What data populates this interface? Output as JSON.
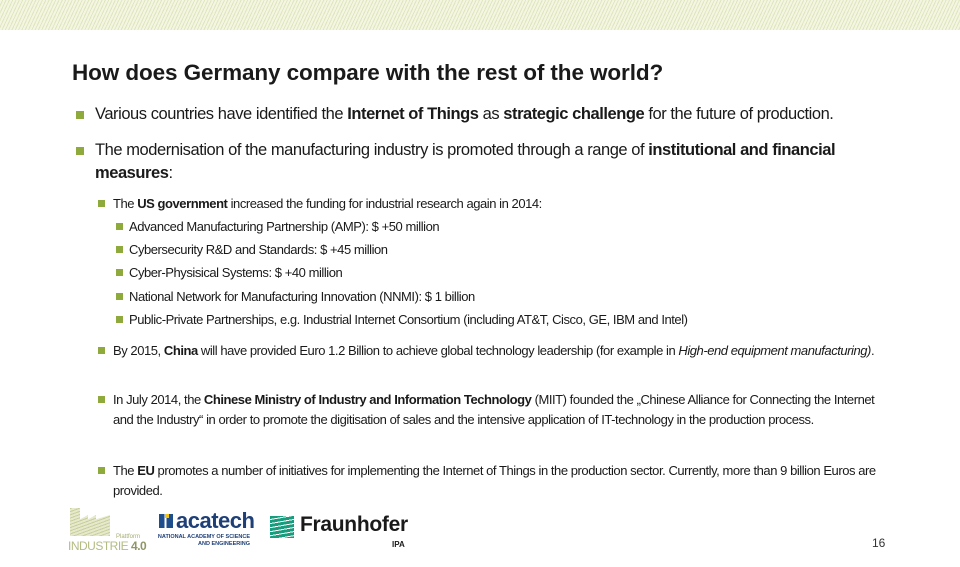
{
  "colors": {
    "bullet": "#8faa3c",
    "band": "#dfe5bf",
    "fraunhofer": "#179c7d",
    "acatech": "#1f3f77"
  },
  "title": "How does Germany compare with the rest of the world?",
  "bullets": [
    {
      "level": 1,
      "segments": [
        {
          "t": "Various countries have identified the "
        },
        {
          "t": "Internet of Things",
          "s": "b"
        },
        {
          "t": " as "
        },
        {
          "t": "strategic challenge",
          "s": "b"
        },
        {
          "t": " for the future of production."
        }
      ]
    },
    {
      "level": 1,
      "segments": [
        {
          "t": "The modernisation of the manufacturing industry is promoted through a range of "
        },
        {
          "t": "institutional and financial measures",
          "s": "b"
        },
        {
          "t": ":"
        }
      ]
    },
    {
      "level": 2,
      "segments": [
        {
          "t": "The "
        },
        {
          "t": "US government",
          "s": "b"
        },
        {
          "t": " increased the funding for industrial research again in 2014:"
        }
      ]
    },
    {
      "level": 3,
      "segments": [
        {
          "t": "Advanced Manufacturing Partnership (AMP): $ +50 million"
        }
      ]
    },
    {
      "level": 3,
      "segments": [
        {
          "t": "Cybersecurity R&D and Standards: $ +45 million"
        }
      ]
    },
    {
      "level": 3,
      "segments": [
        {
          "t": "Cyber-Physisical Systems: $ +40 million"
        }
      ]
    },
    {
      "level": 3,
      "segments": [
        {
          "t": "National Network for Manufacturing Innovation (NNMI):  $ 1 billion"
        }
      ]
    },
    {
      "level": 3,
      "segments": [
        {
          "t": "Public-Private Partnerships, e.g. Industrial Internet Consortium (including AT&T, Cisco, GE, IBM and Intel)"
        }
      ]
    },
    {
      "level": 2,
      "segments": [
        {
          "t": "By 2015, "
        },
        {
          "t": "China",
          "s": "b"
        },
        {
          "t": " will have provided Euro 1.2 Billion to achieve global technology leadership (for example in "
        },
        {
          "t": "High-end equipment manufacturing)",
          "s": "i"
        },
        {
          "t": "."
        }
      ]
    },
    {
      "level": 2,
      "segments": [
        {
          "t": "In July 2014, the "
        },
        {
          "t": "Chinese Ministry of Industry and Information Technology",
          "s": "b"
        },
        {
          "t": " (MIIT) founded the „Chinese Alliance for Connecting the Internet and the Industry“ in order to promote the digitisation of sales and the intensive application of IT-technology in the production process."
        }
      ]
    },
    {
      "level": 2,
      "segments": [
        {
          "t": "The "
        },
        {
          "t": "EU",
          "s": "b"
        },
        {
          "t": " promotes a number of initiatives for implementing the Internet of Things in the production sector. Currently, more than 9 billion Euros are provided."
        }
      ]
    }
  ],
  "logos": {
    "industrie": {
      "platform": "Plattform",
      "name": "INDUSTRIE ",
      "version": "4.0"
    },
    "acatech": {
      "name": "acatech",
      "sub": "NATIONAL ACADEMY OF SCIENCE AND ENGINEERING"
    },
    "fraunhofer": {
      "name": "Fraunhofer",
      "institute": "IPA"
    }
  },
  "page_number": "16"
}
